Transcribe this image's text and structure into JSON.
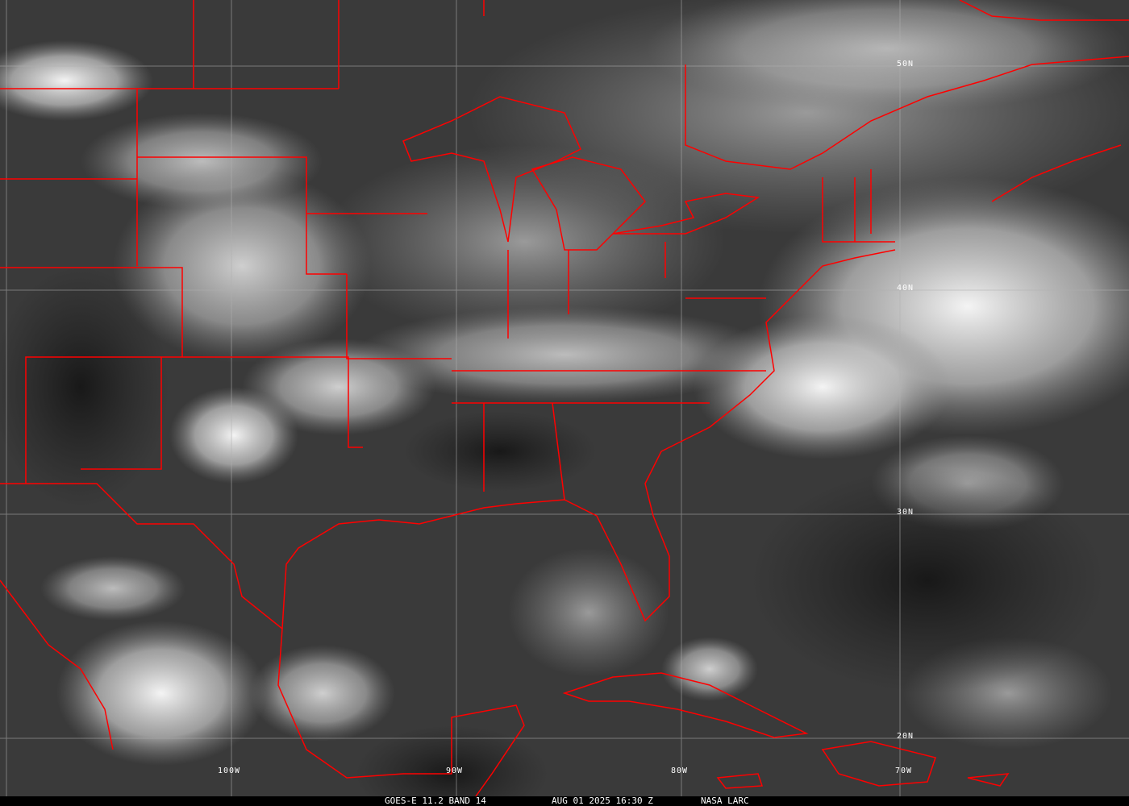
{
  "image": {
    "type": "satellite infrared imagery with political boundary overlay",
    "boundary_color": "#ff0000",
    "grid_color": "#b0b0b0"
  },
  "grid_labels": {
    "longitudes": [
      "100W",
      "90W",
      "80W",
      "70W"
    ],
    "latitudes": [
      "50N",
      "40N",
      "30N",
      "20N"
    ]
  },
  "caption": {
    "product": "GOES-E 11.2 BAND 14",
    "datetime": "AUG 01 2025 16:30 Z",
    "source": "NASA LARC"
  }
}
